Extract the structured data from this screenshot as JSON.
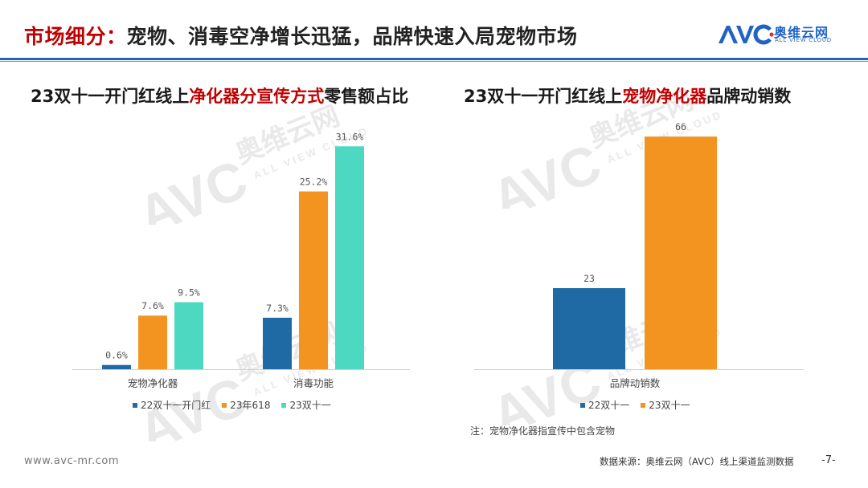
{
  "header": {
    "title_prefix": "市场细分：",
    "title_rest": "宠物、消毒空净增长迅猛，品牌快速入局宠物市场"
  },
  "logo": {
    "mark": "AVC",
    "cn": "奥维云网",
    "en": "ALL VIEW CLOUD",
    "color": "#1f64c4"
  },
  "watermark": {
    "mark": "AVC",
    "cn": "奥维云网",
    "en": "ALL VIEW CLOUD"
  },
  "chart_left_title": {
    "pre": "23双十一开门红线上",
    "highlight": "净化器分宣传方式",
    "post": "零售额占比"
  },
  "chart_right_title": {
    "pre": "23双十一开门红线上",
    "highlight": "宠物净化器",
    "post": "品牌动销数"
  },
  "chart_data": [
    {
      "type": "bar",
      "title": "23双十一开门红线上净化器分宣传方式零售额占比",
      "categories": [
        "宠物净化器",
        "消毒功能"
      ],
      "series": [
        {
          "name": "22双十一开门红",
          "values": [
            0.6,
            7.3
          ],
          "color": "#1f6aa5"
        },
        {
          "name": "23年618",
          "values": [
            7.6,
            25.2
          ],
          "color": "#f2941f"
        },
        {
          "name": "23双十一",
          "values": [
            9.5,
            31.6
          ],
          "color": "#4dd9c1"
        }
      ],
      "value_suffix": "%",
      "ylim": [
        0,
        33
      ],
      "grid": false,
      "legend": "bottom"
    },
    {
      "type": "bar",
      "title": "23双十一开门红线上宠物净化器品牌动销数",
      "categories": [
        "品牌动销数"
      ],
      "series": [
        {
          "name": "22双十一",
          "values": [
            23
          ],
          "color": "#1f6aa5"
        },
        {
          "name": "23双十一",
          "values": [
            66
          ],
          "color": "#f2941f"
        }
      ],
      "value_suffix": "",
      "ylim": [
        0,
        69
      ],
      "grid": false,
      "legend": "bottom"
    }
  ],
  "note": "注：宠物净化器指宣传中包含宠物",
  "footer": {
    "url": "www.avc-mr.com",
    "source": "数据来源：奥维云网（AVC）线上渠道监测数据",
    "page": "-7-"
  }
}
